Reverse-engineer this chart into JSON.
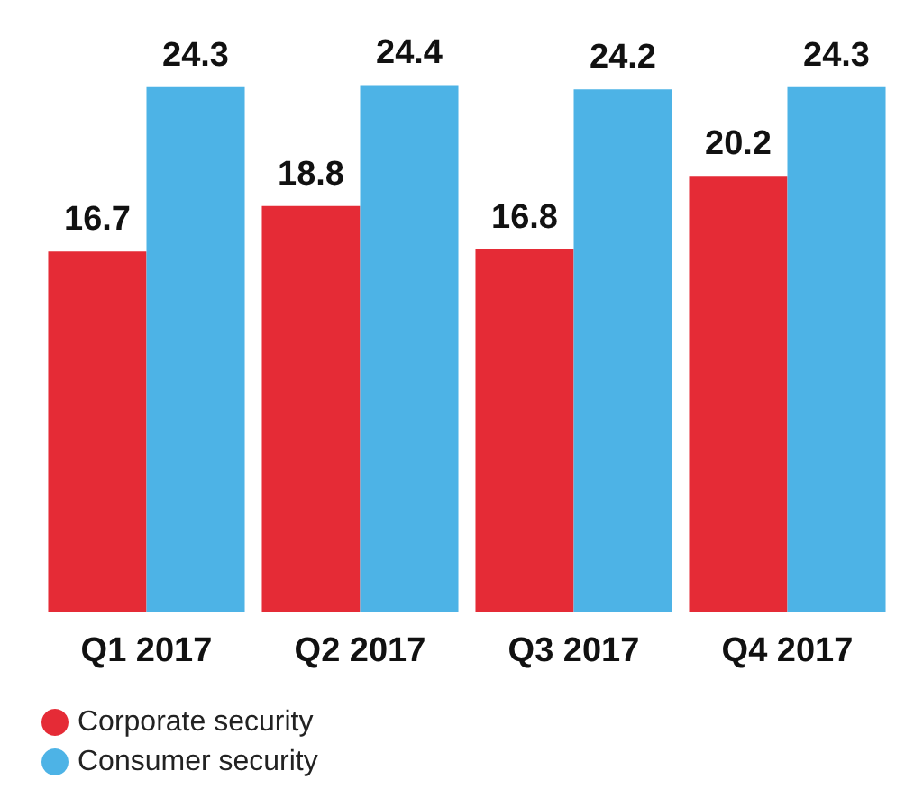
{
  "chart_data": {
    "type": "bar",
    "categories": [
      "Q1 2017",
      "Q2 2017",
      "Q3 2017",
      "Q4 2017"
    ],
    "series": [
      {
        "name": "Corporate security",
        "color": "#e52b36",
        "values": [
          16.7,
          18.8,
          16.8,
          20.2
        ]
      },
      {
        "name": "Consumer security",
        "color": "#4db3e6",
        "values": [
          24.3,
          24.4,
          24.2,
          24.3
        ]
      }
    ],
    "data_labels": true,
    "legend": "bottom left"
  }
}
